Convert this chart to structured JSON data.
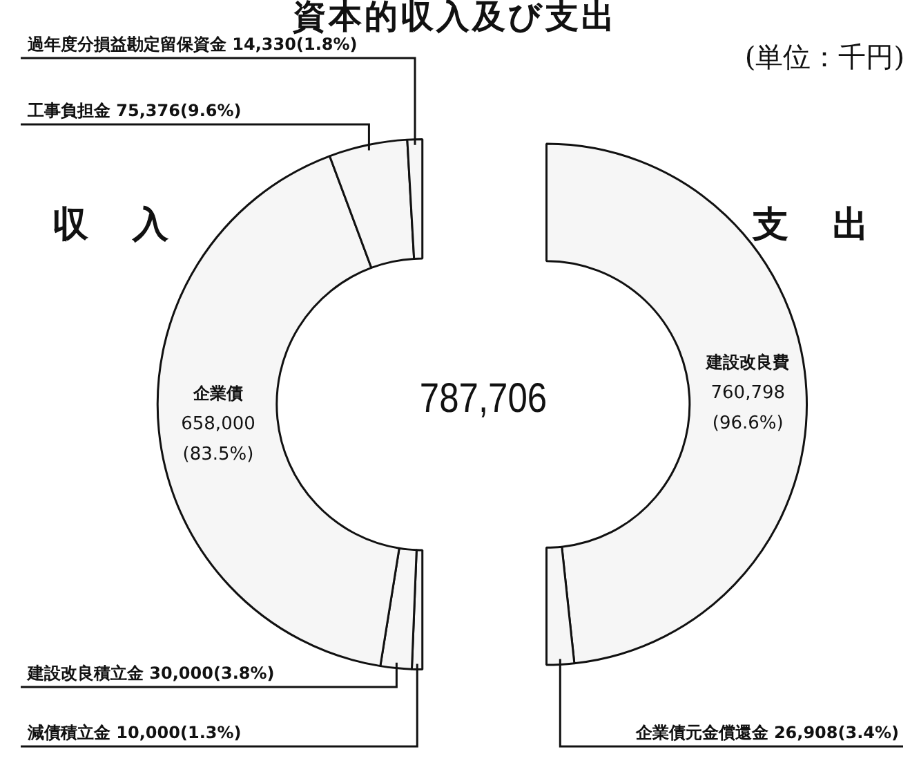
{
  "chart_data": [
    {
      "type": "donut",
      "title": "資本的収入及び支出",
      "subtitle": "収入",
      "annotations": [
        "(単位：千円)",
        "787,706"
      ],
      "legend": false,
      "categories": [
        "減債積立金",
        "建設改良積立金",
        "企業債",
        "工事負担金",
        "過年度分損益勘定留保資金"
      ],
      "values": [
        10000,
        30000,
        658000,
        75376,
        14330
      ],
      "value_labels": [
        "10,000(1.3%)",
        "30,000(3.8%)",
        "658,000(83.5%)",
        "75,376(9.6%)",
        "14,330(1.8%)"
      ],
      "colors": [
        "#f6f6f6",
        "#f6f6f6",
        "#f6f6f6",
        "#f6f6f6",
        "#f6f6f6"
      ]
    },
    {
      "type": "donut",
      "title": "支出",
      "legend": false,
      "categories": [
        "建設改良費",
        "企業債元金償還金"
      ],
      "values": [
        760798,
        26908
      ],
      "value_labels": [
        "760,798(96.6%)",
        "26,908(3.4%)"
      ],
      "colors": [
        "#f6f6f6",
        "#f6f6f6"
      ]
    }
  ]
}
